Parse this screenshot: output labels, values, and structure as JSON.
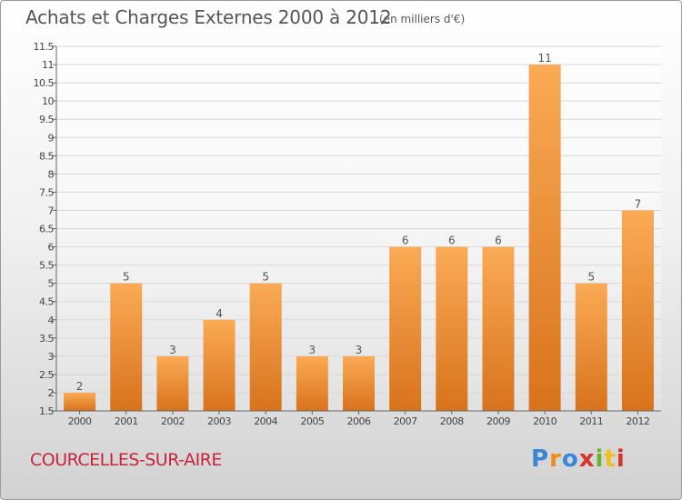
{
  "title": "Achats et Charges Externes 2000 à 2012",
  "unit": "(en milliers d'€)",
  "commune": "COURCELLES-SUR-AIRE",
  "logo": {
    "text": "Proxiti",
    "colors": [
      "#3a86d6",
      "#f08a1c",
      "#3a86d6",
      "#d8322a",
      "#6ab42d",
      "#f0c01c",
      "#d8322a"
    ]
  },
  "colors": {
    "bar_light": "#fbaa55",
    "bar_dark": "#d8731c",
    "grid": "#d8d8d8",
    "title": "#555555",
    "commune": "#c8243c"
  },
  "chart_data": {
    "type": "bar",
    "title": "Achats et Charges Externes 2000 à 2012",
    "subtitle": "(en milliers d'€)",
    "xlabel": "",
    "ylabel": "",
    "categories": [
      "2000",
      "2001",
      "2002",
      "2003",
      "2004",
      "2005",
      "2006",
      "2007",
      "2008",
      "2009",
      "2010",
      "2011",
      "2012"
    ],
    "values": [
      2,
      5,
      3,
      4,
      5,
      3,
      3,
      6,
      6,
      6,
      11,
      5,
      7
    ],
    "value_labels": [
      "2",
      "5",
      "3",
      "4",
      "5",
      "3",
      "3",
      "6",
      "6",
      "6",
      "11",
      "5",
      "7"
    ],
    "ylim": [
      1.5,
      11.5
    ],
    "yticks": [
      "1.5",
      "2",
      "2.5",
      "3",
      "3.5",
      "4",
      "4.5",
      "5",
      "5.5",
      "6",
      "6.5",
      "7",
      "7.5",
      "8",
      "8.5",
      "9",
      "9.5",
      "10",
      "10.5",
      "11",
      "11.5"
    ],
    "grid": true,
    "legend": "none"
  }
}
